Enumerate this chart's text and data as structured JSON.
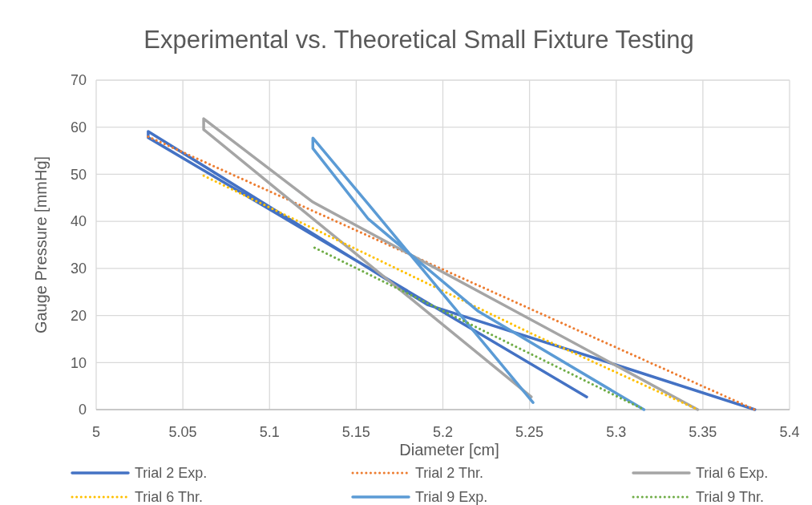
{
  "chart_data": {
    "type": "line",
    "title": "Experimental vs. Theoretical Small Fixture Testing",
    "xlabel": "Diameter [cm]",
    "ylabel": "Gauge Pressure [mmHg]",
    "xlim": [
      5,
      5.4
    ],
    "xticks": [
      5,
      5.05,
      5.1,
      5.15,
      5.2,
      5.25,
      5.3,
      5.35,
      5.4
    ],
    "ylim": [
      0,
      70
    ],
    "yticks": [
      0,
      10,
      20,
      30,
      40,
      50,
      60,
      70
    ],
    "grid": true,
    "legend": "bottom",
    "marker": "none",
    "series": [
      {
        "name": "Trial 2 Exp.",
        "color": "#4472c4",
        "line_style": "solid",
        "x": [
          5.38,
          5.3,
          5.191,
          5.03,
          5.03,
          5.283
        ],
        "values": [
          0,
          9.5,
          22.3,
          59.1,
          57.8,
          2.7
        ]
      },
      {
        "name": "Trial 2 Thr.",
        "color": "#ed7d31",
        "line_style": "dotted",
        "x": [
          5.03,
          5.28,
          5.38
        ],
        "values": [
          58,
          16.5,
          0
        ]
      },
      {
        "name": "Trial 6 Exp.",
        "color": "#a5a5a5",
        "line_style": "solid",
        "x": [
          5.347,
          5.125,
          5.062,
          5.062,
          5.251
        ],
        "values": [
          0,
          44.1,
          61.8,
          59.5,
          2.7
        ]
      },
      {
        "name": "Trial 6 Thr.",
        "color": "#ffc000",
        "line_style": "dotted",
        "x": [
          5.062,
          5.252,
          5.347
        ],
        "values": [
          49.7,
          16,
          0
        ]
      },
      {
        "name": "Trial 9 Exp.",
        "color": "#5b9bd5",
        "line_style": "solid",
        "x": [
          5.316,
          5.22,
          5.157,
          5.125,
          5.125,
          5.156,
          5.252
        ],
        "values": [
          0,
          21,
          40.5,
          55.5,
          57.7,
          44.1,
          1.5
        ]
      },
      {
        "name": "Trial 9 Thr.",
        "color": "#70ad47",
        "line_style": "dotted",
        "x": [
          5.126,
          5.316
        ],
        "values": [
          34.4,
          0
        ]
      }
    ]
  }
}
